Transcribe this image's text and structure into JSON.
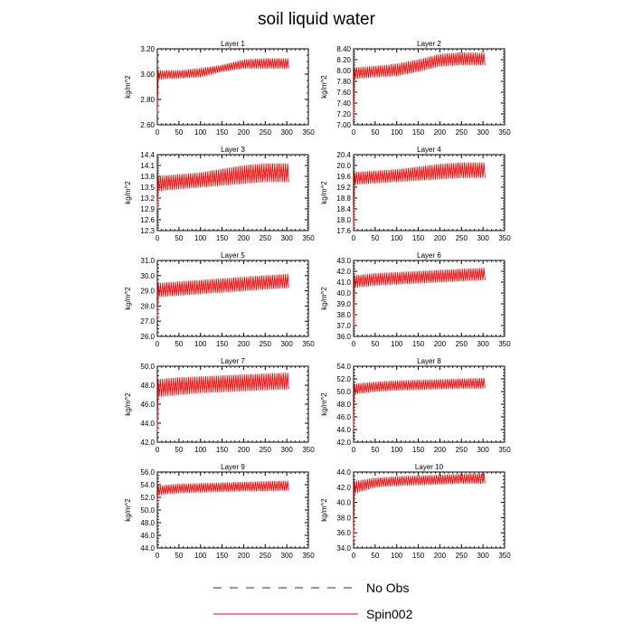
{
  "figure": {
    "title": "soil liquid water",
    "legend": [
      {
        "label": "No Obs",
        "color": "#1a2b8c",
        "style": "dashed"
      },
      {
        "label": "Spin002",
        "color": "#ff0000",
        "style": "solid"
      }
    ]
  },
  "chart_data": [
    {
      "type": "line",
      "title": "Layer 1",
      "ylabel": "kg/m^2",
      "xlim": [
        0,
        350
      ],
      "ylim": [
        2.6,
        3.3
      ],
      "xticks": [
        "0",
        "50",
        "100",
        "150",
        "200",
        "250",
        "300",
        "350"
      ],
      "yticks": [
        "2.60",
        "2.80",
        "3.00",
        "3.20"
      ],
      "series": [
        {
          "name": "Spin002",
          "x": [
            0,
            2,
            50,
            100,
            150,
            200,
            250,
            305
          ],
          "lower": [
            2.7,
            3.02,
            3.03,
            3.04,
            3.09,
            3.12,
            3.12,
            3.12
          ],
          "upper": [
            2.7,
            3.1,
            3.1,
            3.12,
            3.15,
            3.2,
            3.21,
            3.21
          ]
        }
      ]
    },
    {
      "type": "line",
      "title": "Layer 2",
      "ylabel": "kg/m^2",
      "xlim": [
        0,
        350
      ],
      "ylim": [
        7.0,
        8.4
      ],
      "xticks": [
        "0",
        "50",
        "100",
        "150",
        "200",
        "250",
        "300",
        "350"
      ],
      "yticks": [
        "7.00",
        "7.20",
        "7.40",
        "7.60",
        "7.80",
        "8.00",
        "8.20",
        "8.40"
      ],
      "series": [
        {
          "name": "Spin002",
          "x": [
            0,
            2,
            50,
            100,
            150,
            200,
            250,
            305
          ],
          "lower": [
            7.1,
            7.85,
            7.88,
            7.9,
            7.98,
            8.08,
            8.1,
            8.1
          ],
          "upper": [
            7.1,
            8.05,
            8.08,
            8.12,
            8.2,
            8.3,
            8.33,
            8.32
          ]
        }
      ]
    },
    {
      "type": "line",
      "title": "Layer 3",
      "ylabel": "kg/m^2",
      "xlim": [
        0,
        350
      ],
      "ylim": [
        12.3,
        14.4
      ],
      "xticks": [
        "0",
        "50",
        "100",
        "150",
        "200",
        "250",
        "300",
        "350"
      ],
      "yticks": [
        "12.3",
        "12.6",
        "12.9",
        "13.2",
        "13.5",
        "13.8",
        "14.1",
        "14.4"
      ],
      "series": [
        {
          "name": "Spin002",
          "x": [
            0,
            2,
            50,
            100,
            150,
            200,
            250,
            305
          ],
          "lower": [
            12.9,
            13.4,
            13.45,
            13.5,
            13.55,
            13.6,
            13.65,
            13.65
          ],
          "upper": [
            12.9,
            13.8,
            13.85,
            13.9,
            14.0,
            14.1,
            14.15,
            14.15
          ]
        }
      ]
    },
    {
      "type": "line",
      "title": "Layer 4",
      "ylabel": "kg/m^2",
      "xlim": [
        0,
        350
      ],
      "ylim": [
        17.6,
        20.4
      ],
      "xticks": [
        "0",
        "50",
        "100",
        "150",
        "200",
        "250",
        "300",
        "350"
      ],
      "yticks": [
        "17.6",
        "18.0",
        "18.4",
        "18.8",
        "19.2",
        "19.6",
        "20.0",
        "20.4"
      ],
      "series": [
        {
          "name": "Spin002",
          "x": [
            0,
            2,
            50,
            100,
            150,
            200,
            250,
            305
          ],
          "lower": [
            17.7,
            19.3,
            19.35,
            19.4,
            19.45,
            19.5,
            19.55,
            19.55
          ],
          "upper": [
            17.7,
            19.75,
            19.8,
            19.85,
            19.95,
            20.05,
            20.1,
            20.1
          ]
        }
      ]
    },
    {
      "type": "line",
      "title": "Layer 5",
      "ylabel": "kg/m^2",
      "xlim": [
        0,
        350
      ],
      "ylim": [
        26.0,
        31.0
      ],
      "xticks": [
        "0",
        "50",
        "100",
        "150",
        "200",
        "250",
        "300",
        "350"
      ],
      "yticks": [
        "26.0",
        "27.0",
        "28.0",
        "29.0",
        "30.0",
        "31.0"
      ],
      "series": [
        {
          "name": "Spin002",
          "x": [
            0,
            2,
            50,
            100,
            150,
            200,
            250,
            305
          ],
          "lower": [
            27.2,
            28.6,
            28.7,
            28.8,
            28.9,
            29.0,
            29.1,
            29.2
          ],
          "upper": [
            27.2,
            29.5,
            29.6,
            29.7,
            29.8,
            29.9,
            30.0,
            30.1
          ]
        }
      ]
    },
    {
      "type": "line",
      "title": "Layer 6",
      "ylabel": "kg/m^2",
      "xlim": [
        0,
        350
      ],
      "ylim": [
        36.0,
        43.0
      ],
      "xticks": [
        "0",
        "50",
        "100",
        "150",
        "200",
        "250",
        "300",
        "350"
      ],
      "yticks": [
        "36.0",
        "37.0",
        "38.0",
        "39.0",
        "40.0",
        "41.0",
        "42.0",
        "43.0"
      ],
      "series": [
        {
          "name": "Spin002",
          "x": [
            0,
            2,
            50,
            100,
            150,
            200,
            250,
            305
          ],
          "lower": [
            37.0,
            40.5,
            40.7,
            40.8,
            40.9,
            41.0,
            41.1,
            41.2
          ],
          "upper": [
            37.0,
            41.6,
            41.8,
            41.9,
            42.0,
            42.1,
            42.2,
            42.3
          ]
        }
      ]
    },
    {
      "type": "line",
      "title": "Layer 7",
      "ylabel": "kg/m^2",
      "xlim": [
        0,
        350
      ],
      "ylim": [
        42.0,
        50.0
      ],
      "xticks": [
        "0",
        "50",
        "100",
        "150",
        "200",
        "250",
        "300",
        "350"
      ],
      "yticks": [
        "42.0",
        "44.0",
        "46.0",
        "48.0",
        "50.0"
      ],
      "series": [
        {
          "name": "Spin002",
          "x": [
            0,
            2,
            50,
            100,
            150,
            200,
            250,
            305
          ],
          "lower": [
            43.0,
            46.8,
            47.0,
            47.2,
            47.3,
            47.4,
            47.5,
            47.6
          ],
          "upper": [
            43.0,
            48.6,
            48.8,
            48.9,
            49.0,
            49.1,
            49.2,
            49.3
          ]
        }
      ]
    },
    {
      "type": "line",
      "title": "Layer 8",
      "ylabel": "kg/m^2",
      "xlim": [
        0,
        350
      ],
      "ylim": [
        42.0,
        54.0
      ],
      "xticks": [
        "0",
        "50",
        "100",
        "150",
        "200",
        "250",
        "300",
        "350"
      ],
      "yticks": [
        "42.0",
        "44.0",
        "46.0",
        "48.0",
        "50.0",
        "52.0",
        "54.0"
      ],
      "series": [
        {
          "name": "Spin002",
          "x": [
            0,
            2,
            50,
            100,
            150,
            200,
            250,
            305
          ],
          "lower": [
            44.0,
            49.6,
            50.0,
            50.2,
            50.3,
            50.4,
            50.5,
            50.5
          ],
          "upper": [
            44.0,
            51.2,
            51.5,
            51.7,
            51.8,
            51.9,
            52.0,
            52.1
          ]
        }
      ]
    },
    {
      "type": "line",
      "title": "Layer 9",
      "ylabel": "kg/m^2",
      "xlim": [
        0,
        350
      ],
      "ylim": [
        44.0,
        56.0
      ],
      "xticks": [
        "0",
        "50",
        "100",
        "150",
        "200",
        "250",
        "300",
        "350"
      ],
      "yticks": [
        "44.0",
        "46.0",
        "48.0",
        "50.0",
        "52.0",
        "54.0",
        "56.0"
      ],
      "series": [
        {
          "name": "Spin002",
          "x": [
            0,
            2,
            50,
            100,
            150,
            200,
            250,
            305
          ],
          "lower": [
            51.0,
            52.4,
            52.7,
            52.8,
            52.9,
            53.0,
            53.0,
            53.1
          ],
          "upper": [
            51.0,
            53.8,
            54.1,
            54.2,
            54.3,
            54.4,
            54.5,
            54.6
          ]
        }
      ]
    },
    {
      "type": "line",
      "title": "Layer 10",
      "ylabel": "kg/m^2",
      "xlim": [
        0,
        350
      ],
      "ylim": [
        34.0,
        44.0
      ],
      "xticks": [
        "0",
        "50",
        "100",
        "150",
        "200",
        "250",
        "300",
        "350"
      ],
      "yticks": [
        "34.0",
        "36.0",
        "38.0",
        "40.0",
        "42.0",
        "44.0"
      ],
      "series": [
        {
          "name": "Spin002",
          "x": [
            0,
            2,
            50,
            100,
            150,
            200,
            250,
            305
          ],
          "lower": [
            35.0,
            41.2,
            42.0,
            42.2,
            42.3,
            42.4,
            42.5,
            42.5
          ],
          "upper": [
            35.0,
            42.8,
            43.2,
            43.4,
            43.5,
            43.6,
            43.7,
            43.8
          ]
        }
      ]
    }
  ]
}
